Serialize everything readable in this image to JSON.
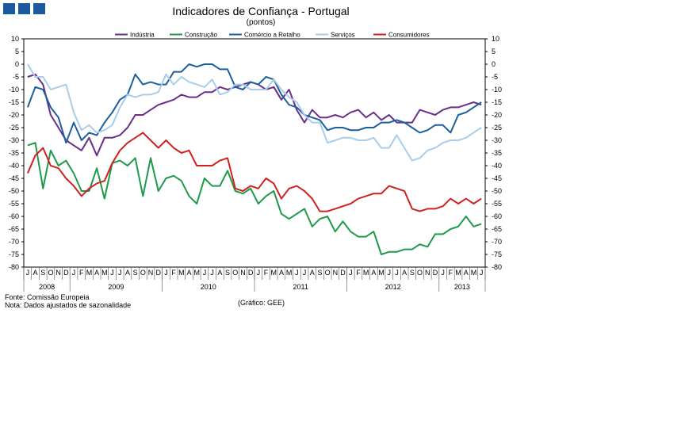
{
  "header": {
    "title": "Indicadores de Confiança - Portugal",
    "subtitle": "(pontos)"
  },
  "footer": {
    "source": "Fonte: Comissão Europeia",
    "note": "Nota: Dados ajustados de sazonalidade",
    "credit": "(Gráfico: GEE)"
  },
  "chart_data": {
    "type": "line",
    "title": "Indicadores de Confiança - Portugal",
    "subtitle": "(pontos)",
    "ylim": [
      -80,
      10
    ],
    "yticks": [
      10,
      5,
      0,
      -5,
      -10,
      -15,
      -20,
      -25,
      -30,
      -35,
      -40,
      -45,
      -50,
      -55,
      -60,
      -65,
      -70,
      -75,
      -80
    ],
    "legend_position": "top",
    "x": [
      "J",
      "A",
      "S",
      "O",
      "N",
      "D",
      "J",
      "F",
      "M",
      "A",
      "M",
      "J",
      "J",
      "A",
      "S",
      "O",
      "N",
      "D",
      "J",
      "F",
      "M",
      "A",
      "M",
      "J",
      "J",
      "A",
      "S",
      "O",
      "N",
      "D",
      "J",
      "F",
      "M",
      "A",
      "M",
      "J",
      "J",
      "A",
      "S",
      "O",
      "N",
      "D",
      "J",
      "F",
      "M",
      "A",
      "M",
      "J",
      "J",
      "A",
      "S",
      "O",
      "N",
      "D",
      "J",
      "F",
      "M",
      "A",
      "M",
      "J"
    ],
    "years": [
      {
        "label": "2008",
        "start": 0,
        "end": 5
      },
      {
        "label": "2009",
        "start": 6,
        "end": 17
      },
      {
        "label": "2010",
        "start": 18,
        "end": 29
      },
      {
        "label": "2011",
        "start": 30,
        "end": 41
      },
      {
        "label": "2012",
        "start": 42,
        "end": 53
      },
      {
        "label": "2013",
        "start": 54,
        "end": 59
      }
    ],
    "series": [
      {
        "name": "Indústria",
        "color": "#6b2d8a",
        "values": [
          -5,
          -4,
          -8,
          -20,
          -25,
          -30,
          -32,
          -34,
          -29,
          -36,
          -29,
          -29,
          -28,
          -25,
          -20,
          -20,
          -18,
          -16,
          -15,
          -14,
          -12,
          -13,
          -13,
          -11,
          -11,
          -9,
          -10,
          -9,
          -8,
          -7,
          -8,
          -10,
          -9,
          -14,
          -10,
          -18,
          -23,
          -18,
          -21,
          -21,
          -20,
          -21,
          -19,
          -18,
          -21,
          -19,
          -22,
          -20,
          -23,
          -23,
          -23,
          -18,
          -19,
          -20,
          -18,
          -17,
          -17,
          -16,
          -15,
          -16
        ]
      },
      {
        "name": "Construção",
        "color": "#1e9a4a",
        "values": [
          -32,
          -31,
          -49,
          -34,
          -40,
          -38,
          -43,
          -50,
          -50,
          -41,
          -53,
          -39,
          -38,
          -40,
          -37,
          -52,
          -37,
          -50,
          -45,
          -44,
          -46,
          -52,
          -55,
          -45,
          -48,
          -48,
          -42,
          -50,
          -51,
          -49,
          -55,
          -52,
          -50,
          -59,
          -61,
          -59,
          -57,
          -64,
          -61,
          -60,
          -66,
          -62,
          -66,
          -68,
          -68,
          -66,
          -75,
          -74,
          -74,
          -73,
          -73,
          -71,
          -72,
          -67,
          -67,
          -65,
          -64,
          -60,
          -64,
          -63
        ]
      },
      {
        "name": "Comércio a Retalho",
        "color": "#1a5f9e",
        "values": [
          -17,
          -9,
          -10,
          -17,
          -21,
          -31,
          -23,
          -30,
          -27,
          -28,
          -23,
          -19,
          -14,
          -12,
          -4,
          -8,
          -7,
          -8,
          -8,
          -3,
          -3,
          0,
          -1,
          0,
          0,
          -2,
          -2,
          -9,
          -10,
          -7,
          -8,
          -5,
          -6,
          -12,
          -16,
          -17,
          -20,
          -21,
          -22,
          -26,
          -25,
          -25,
          -26,
          -26,
          -25,
          -25,
          -23,
          -23,
          -22,
          -23,
          -25,
          -27,
          -26,
          -24,
          -24,
          -27,
          -20,
          -19,
          -17,
          -15
        ]
      },
      {
        "name": "Serviços",
        "color": "#a9cde8",
        "values": [
          0,
          -5,
          -5,
          -10,
          -9,
          -8,
          -19,
          -26,
          -24,
          -27,
          -26,
          -24,
          -17,
          -12,
          -13,
          -12,
          -12,
          -11,
          -4,
          -8,
          -5,
          -7,
          -8,
          -9,
          -6,
          -12,
          -11,
          -8,
          -8,
          -10,
          -10,
          -10,
          -6,
          -10,
          -13,
          -15,
          -20,
          -23,
          -23,
          -31,
          -30,
          -29,
          -29,
          -30,
          -30,
          -29,
          -33,
          -33,
          -28,
          -33,
          -38,
          -37,
          -34,
          -33,
          -31,
          -30,
          -30,
          -29,
          -27,
          -25
        ]
      },
      {
        "name": "Consumidores",
        "color": "#d02020",
        "values": [
          -43,
          -36,
          -33,
          -40,
          -41,
          -45,
          -48,
          -52,
          -49,
          -47,
          -46,
          -39,
          -34,
          -31,
          -29,
          -27,
          -30,
          -33,
          -30,
          -33,
          -35,
          -34,
          -40,
          -40,
          -40,
          -38,
          -37,
          -49,
          -50,
          -48,
          -49,
          -45,
          -47,
          -53,
          -49,
          -48,
          -50,
          -53,
          -58,
          -58,
          -57,
          -56,
          -55,
          -53,
          -52,
          -51,
          -51,
          -48,
          -49,
          -50,
          -57,
          -58,
          -57,
          -57,
          -56,
          -53,
          -55,
          -53,
          -55,
          -53
        ]
      }
    ]
  }
}
